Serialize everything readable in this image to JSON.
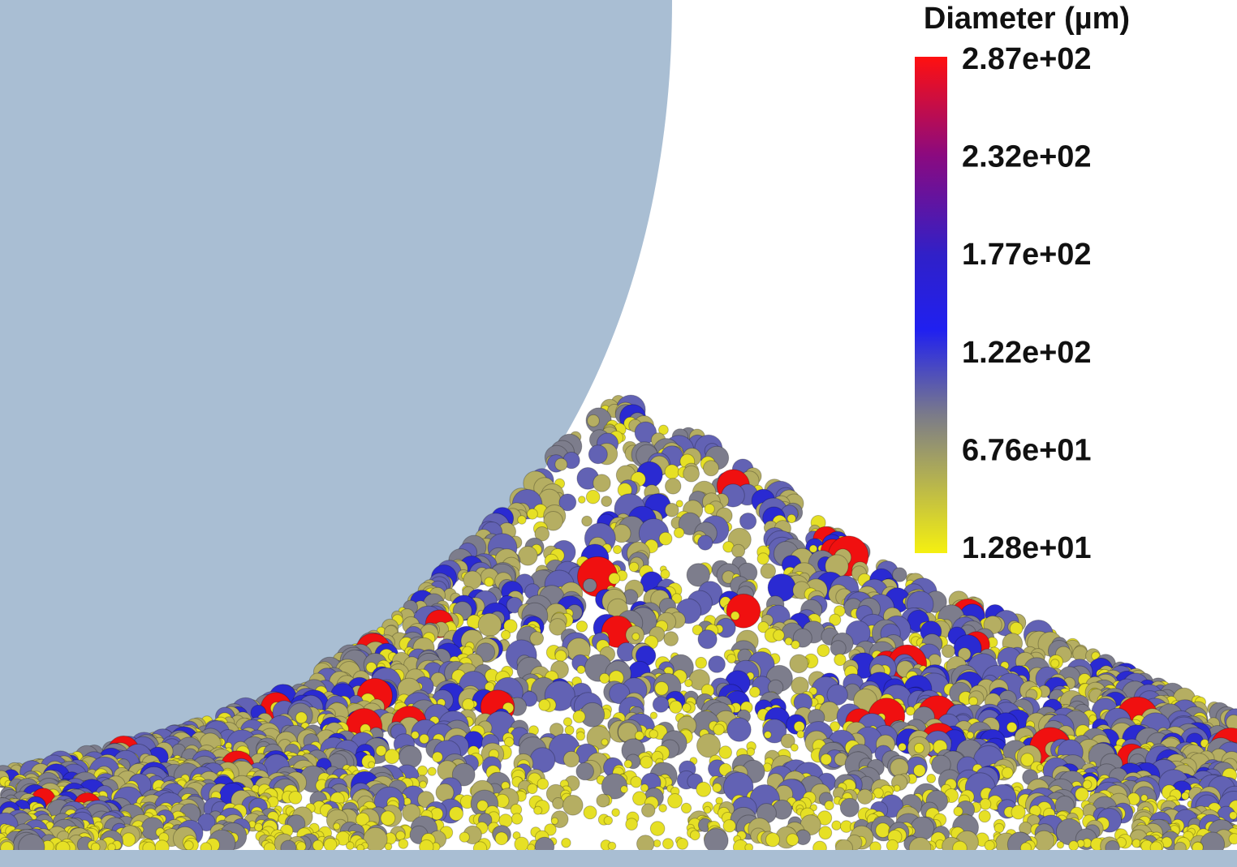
{
  "legend": {
    "title": "Diameter (µm)",
    "labels": [
      "2.87e+02",
      "2.32e+02",
      "1.77e+02",
      "1.22e+02",
      "6.76e+01",
      "1.28e+01"
    ]
  }
}
